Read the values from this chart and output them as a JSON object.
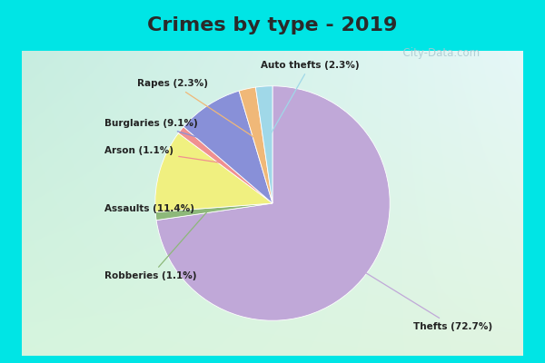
{
  "title": "Crimes by type - 2019",
  "title_fontsize": 16,
  "slices": [
    {
      "label": "Thefts (72.7%)",
      "value": 72.7,
      "color": "#C0A8D8"
    },
    {
      "label": "Robberies (1.1%)",
      "value": 1.1,
      "color": "#8DB87A"
    },
    {
      "label": "Assaults (11.4%)",
      "value": 11.4,
      "color": "#F0F080"
    },
    {
      "label": "Arson (1.1%)",
      "value": 1.1,
      "color": "#F09090"
    },
    {
      "label": "Burglaries (9.1%)",
      "value": 9.1,
      "color": "#8890D8"
    },
    {
      "label": "Rapes (2.3%)",
      "value": 2.3,
      "color": "#F0B878"
    },
    {
      "label": "Auto thefts (2.3%)",
      "value": 2.3,
      "color": "#A0D8E8"
    }
  ],
  "startangle": 90,
  "border_color": "#00E5E5",
  "border_width": 8,
  "bg_color_tl": [
    0.78,
    0.93,
    0.88
  ],
  "bg_color_br": [
    0.88,
    0.96,
    0.88
  ],
  "watermark": "  City-Data.com"
}
